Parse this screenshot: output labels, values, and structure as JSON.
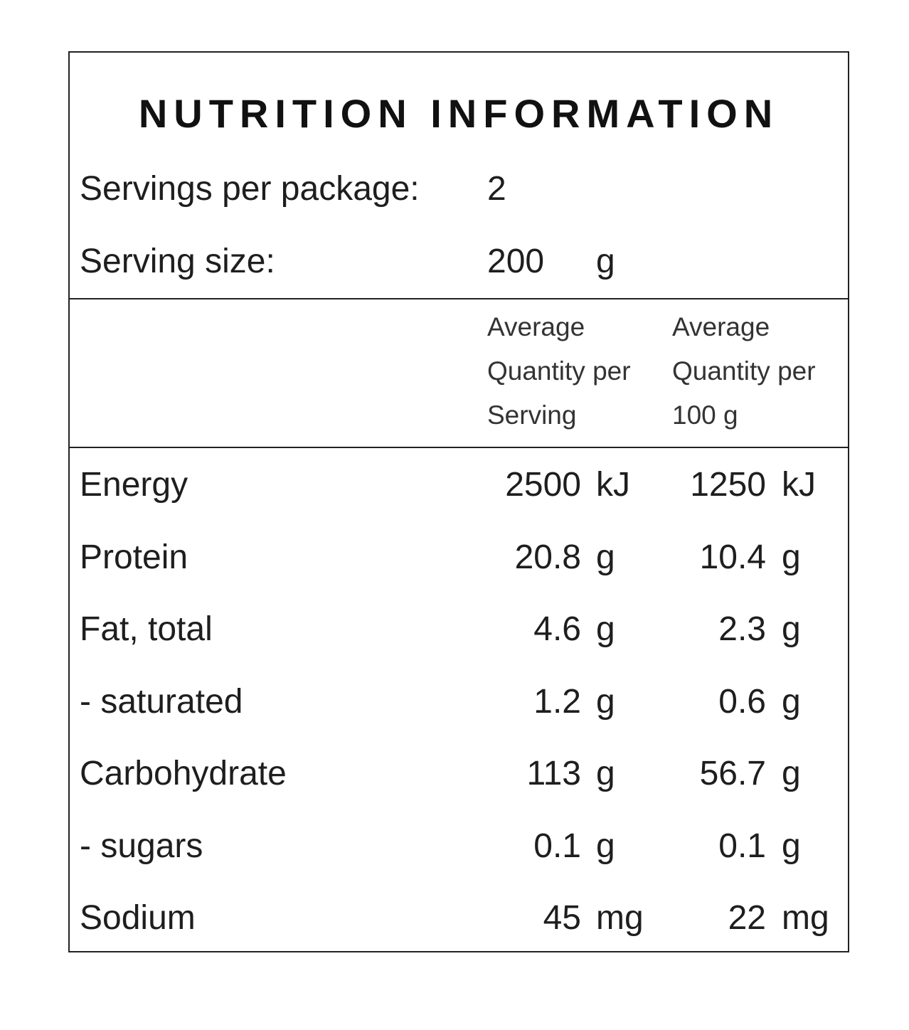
{
  "header": {
    "title": "NUTRITION INFORMATION"
  },
  "servings_per_package": {
    "label": "Servings per package:",
    "value": 2
  },
  "serving_size": {
    "label": "Serving size:",
    "value": 200,
    "unit": "g"
  },
  "table": {
    "column_headers": [
      "Average Quantity per Serving",
      "Average Quantity per 100 g"
    ],
    "rows": [
      {
        "nutrient": "Energy",
        "per_serving": 2500,
        "per_serving_unit": "kJ",
        "per_100g": 1250,
        "per_100g_unit": "kJ"
      },
      {
        "nutrient": "Protein",
        "per_serving": 20.8,
        "per_serving_unit": "g",
        "per_100g": 10.4,
        "per_100g_unit": "g"
      },
      {
        "nutrient": "Fat, total",
        "per_serving": 4.6,
        "per_serving_unit": "g",
        "per_100g": 2.3,
        "per_100g_unit": "g"
      },
      {
        "nutrient": "- saturated",
        "per_serving": 1.2,
        "per_serving_unit": "g",
        "per_100g": 0.6,
        "per_100g_unit": "g"
      },
      {
        "nutrient": "Carbohydrate",
        "per_serving": 113,
        "per_serving_unit": "g",
        "per_100g": 56.7,
        "per_100g_unit": "g"
      },
      {
        "nutrient": "- sugars",
        "per_serving": 0.1,
        "per_serving_unit": "g",
        "per_100g": 0.1,
        "per_100g_unit": "g"
      },
      {
        "nutrient": "Sodium",
        "per_serving": 45,
        "per_serving_unit": "mg",
        "per_100g": 22,
        "per_100g_unit": "mg"
      }
    ]
  }
}
